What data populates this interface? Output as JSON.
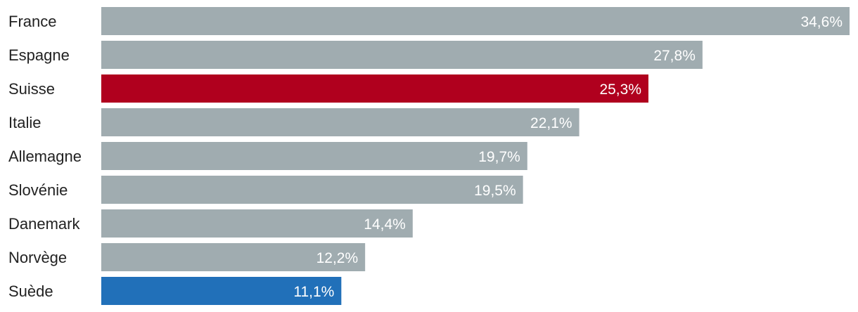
{
  "chart_data": {
    "type": "bar",
    "orientation": "horizontal",
    "categories": [
      "France",
      "Espagne",
      "Suisse",
      "Italie",
      "Allemagne",
      "Slovénie",
      "Danemark",
      "Norvège",
      "Suède"
    ],
    "values": [
      34.6,
      27.8,
      25.3,
      22.1,
      19.7,
      19.5,
      14.4,
      12.2,
      11.1
    ],
    "value_labels": [
      "34,6%",
      "27,8%",
      "25,3%",
      "22,1%",
      "19,7%",
      "19,5%",
      "14,4%",
      "12,2%",
      "11,1%"
    ],
    "bar_colors": [
      "#a0acb0",
      "#a0acb0",
      "#b0001e",
      "#a0acb0",
      "#a0acb0",
      "#a0acb0",
      "#a0acb0",
      "#a0acb0",
      "#2170b9"
    ],
    "xlim": [
      0,
      34.6
    ],
    "grid": false,
    "title": "",
    "xlabel": "",
    "ylabel": ""
  }
}
